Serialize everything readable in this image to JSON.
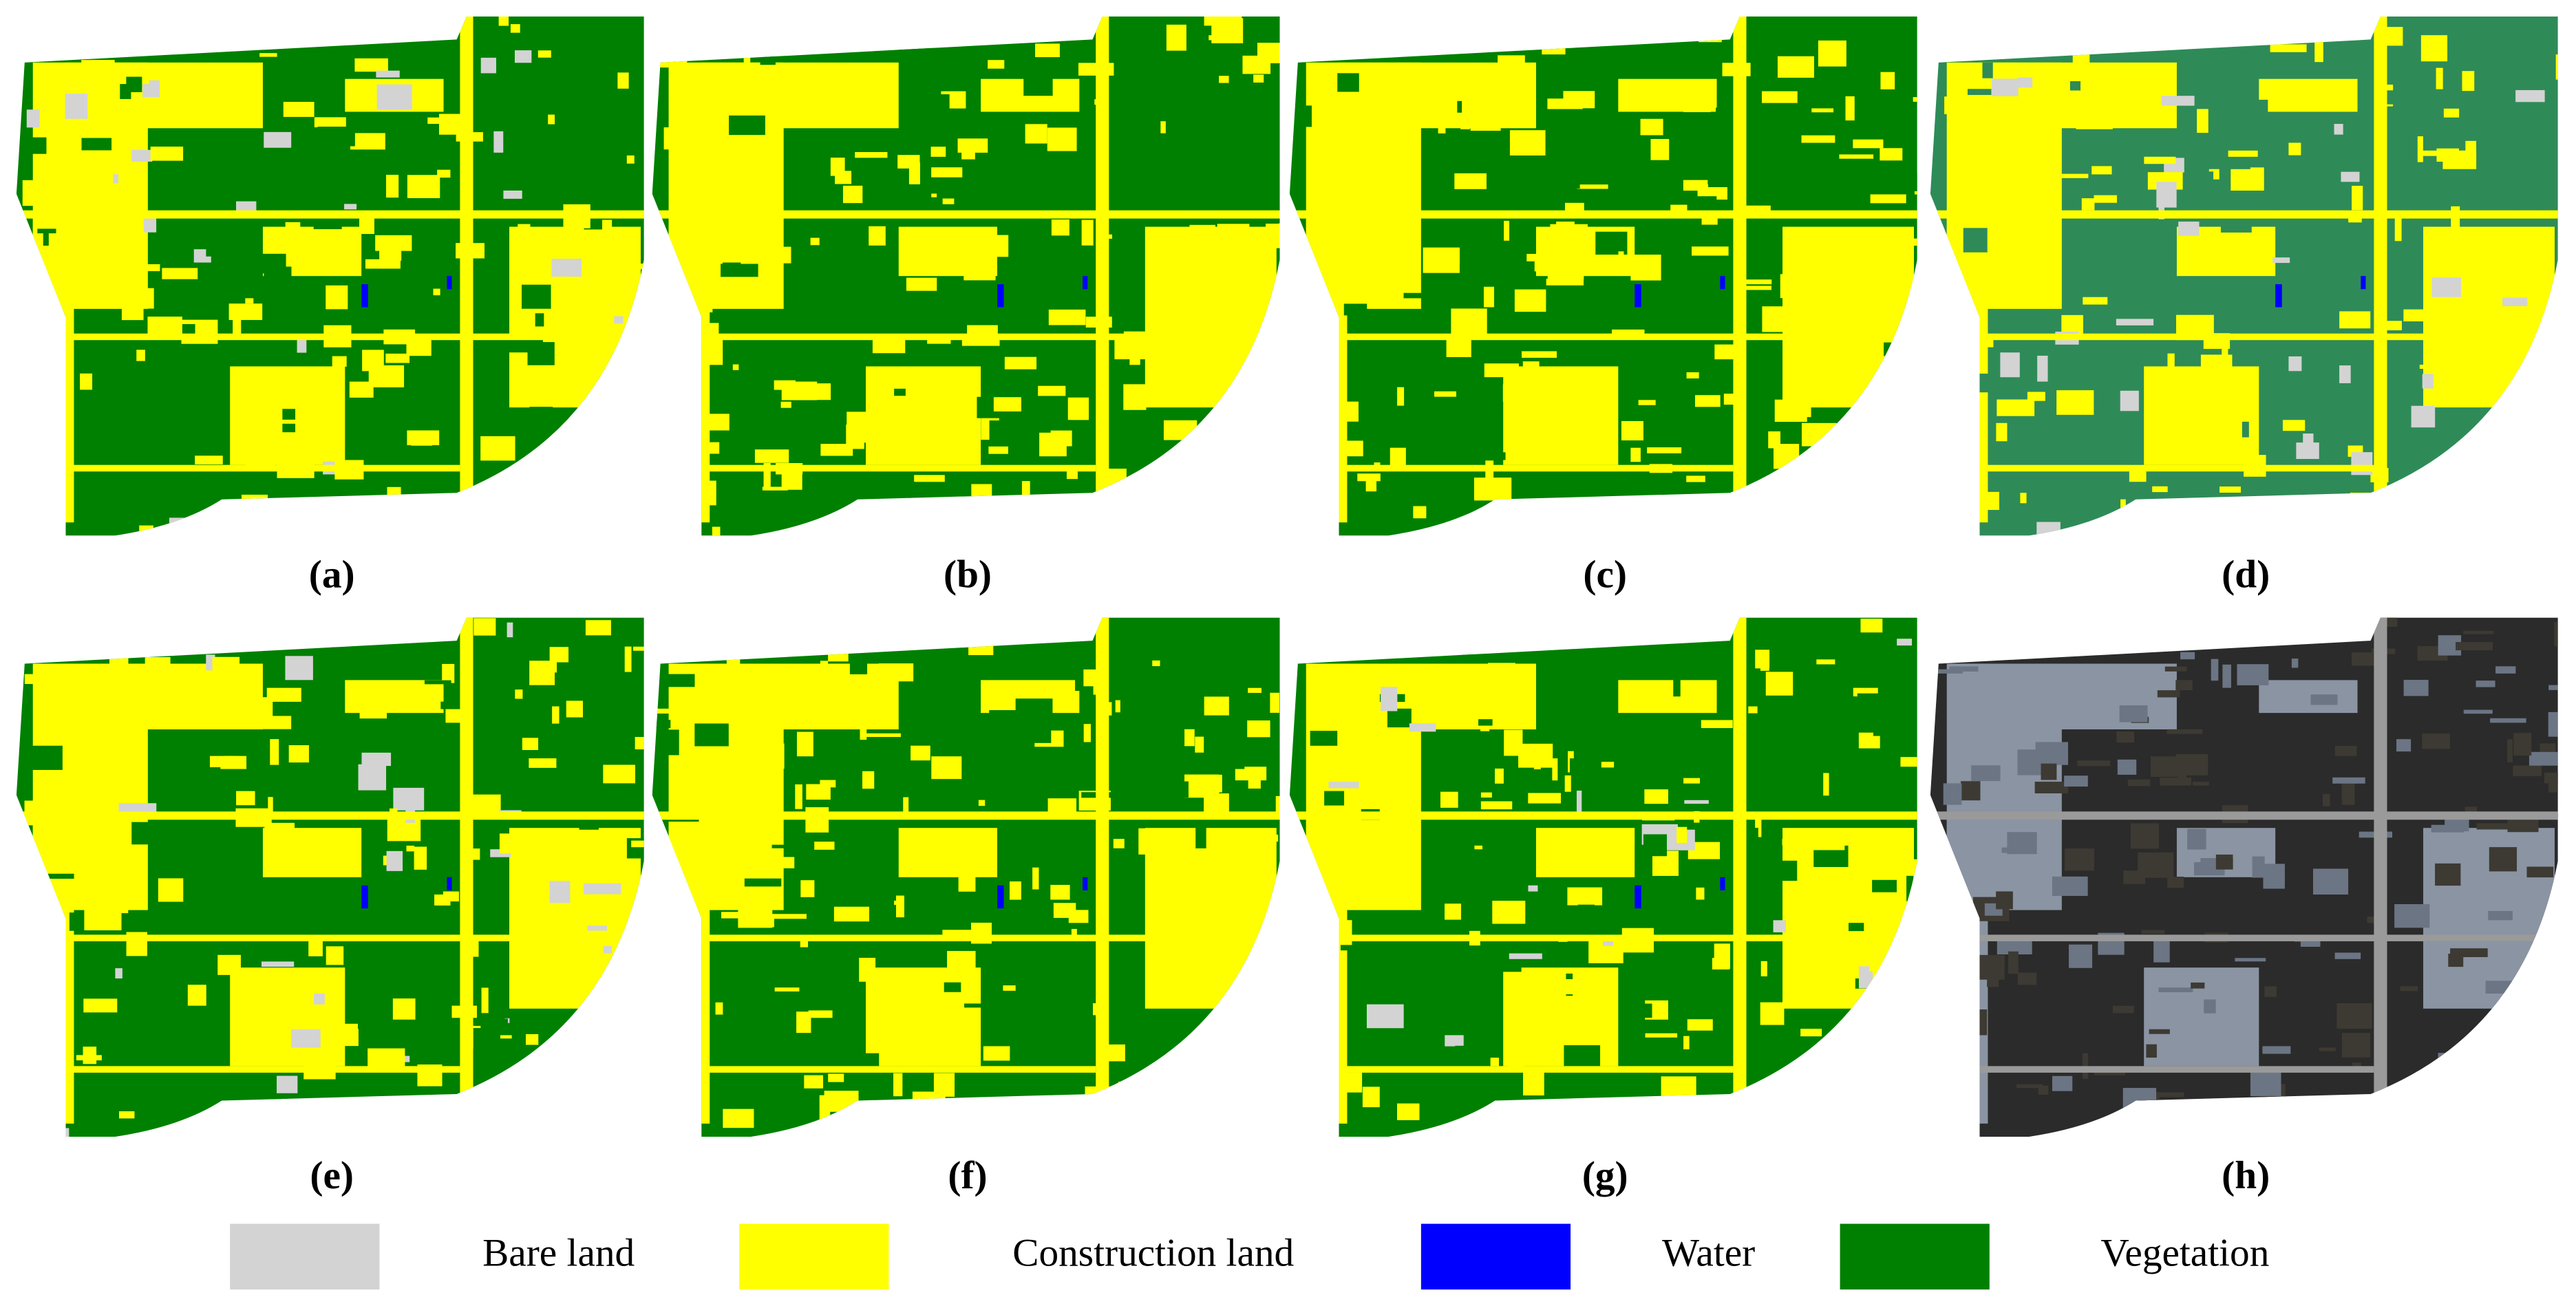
{
  "panels": [
    {
      "label": "(a)"
    },
    {
      "label": "(b)"
    },
    {
      "label": "(c)"
    },
    {
      "label": "(d)"
    },
    {
      "label": "(e)"
    },
    {
      "label": "(f)"
    },
    {
      "label": "(g)"
    },
    {
      "label": "(h)"
    }
  ],
  "legend": [
    {
      "name": "Bare land",
      "color": "#d3d3d3"
    },
    {
      "name": "Construction land",
      "color": "#ffff00"
    },
    {
      "name": "Water",
      "color": "#0000ff"
    },
    {
      "name": "Vegetation",
      "color": "#008000"
    }
  ]
}
